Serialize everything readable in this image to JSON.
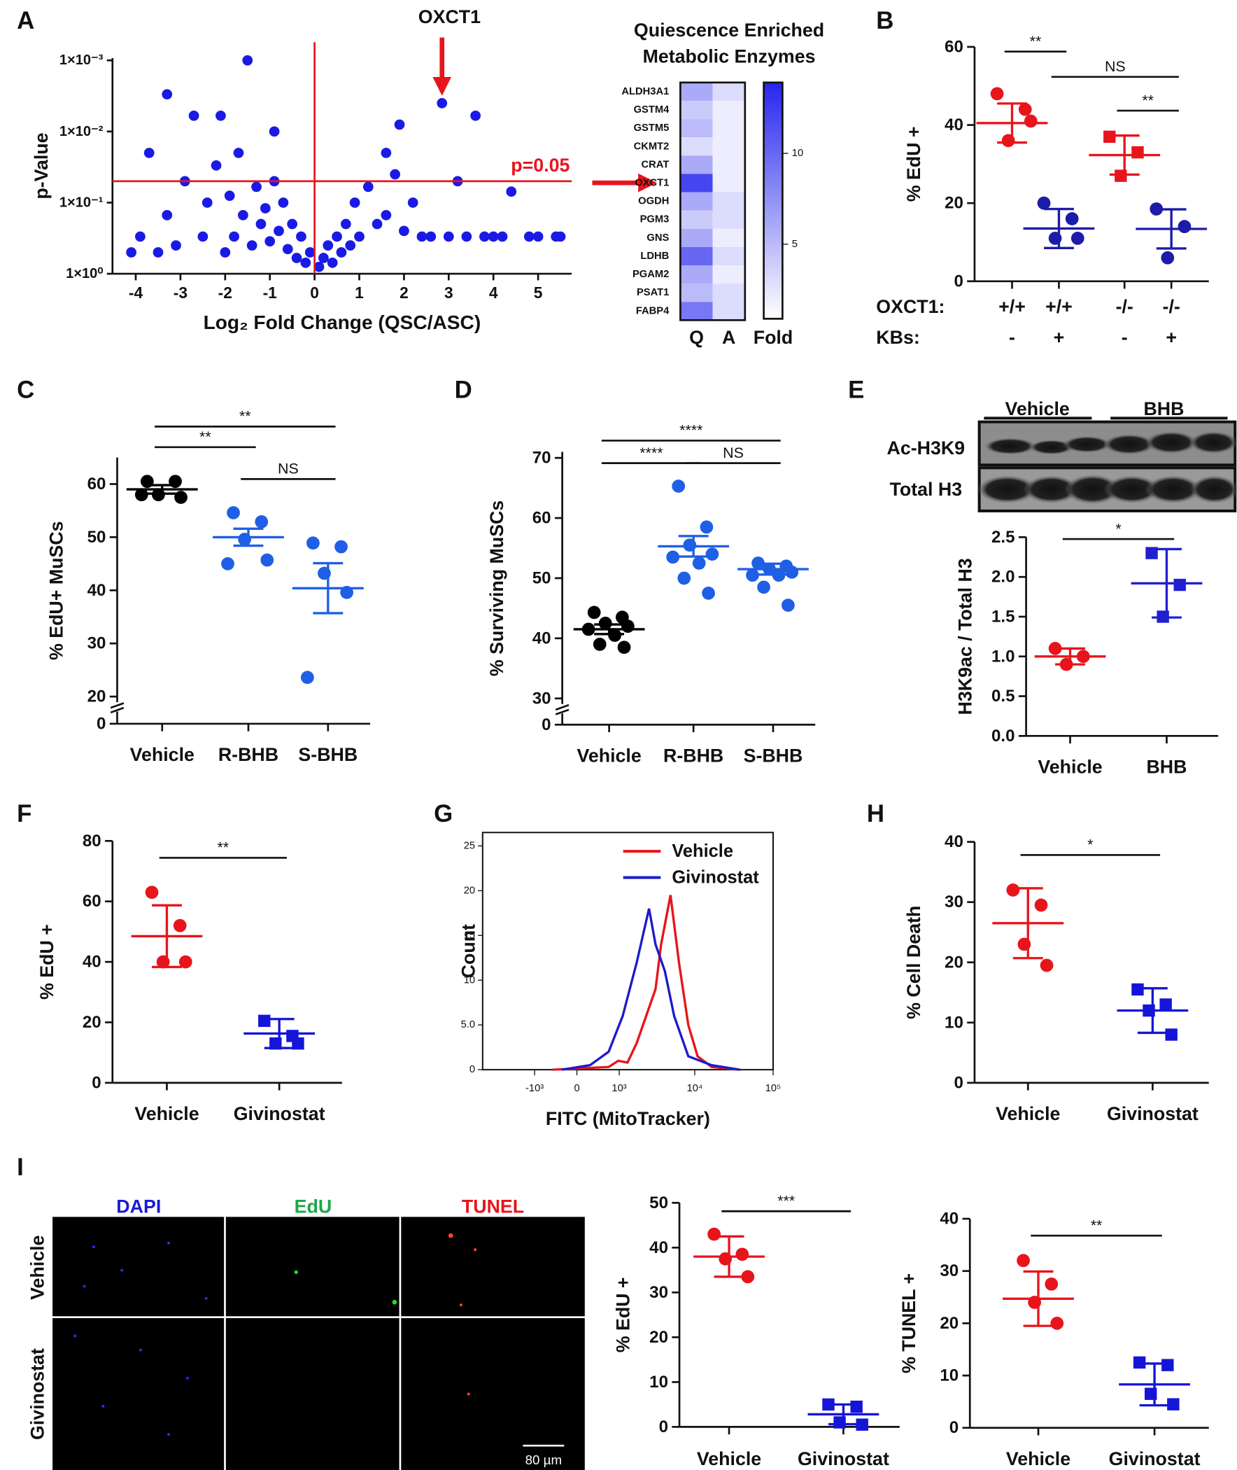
{
  "panel_labels": [
    "A",
    "B",
    "C",
    "D",
    "E",
    "F",
    "G",
    "H",
    "I"
  ],
  "blot": {
    "groups": [
      "Vehicle",
      "BHB"
    ],
    "rows": [
      "Ac-H3K9",
      "Total H3"
    ]
  },
  "micrograph": {
    "columns": [
      "DAPI",
      "EdU",
      "TUNEL"
    ],
    "rows": [
      "Vehicle",
      "Givinostat"
    ],
    "scale_bar": "80 µm"
  },
  "chart_data": [
    {
      "type": "volcano",
      "xlabel": "Log₂ Fold Change (QSC/ASC)",
      "ylabel": "p-Value",
      "xlim": [
        -4.52,
        5.75
      ],
      "xticks": [
        -4,
        -3,
        -2,
        -1,
        0,
        1,
        2,
        3,
        4,
        5
      ],
      "yscale": "log",
      "ylim": [
        1,
        0.00093
      ],
      "yticks": [
        {
          "value": 1,
          "label": "1×10⁰"
        },
        {
          "value": 0.1,
          "label": "1×10⁻¹"
        },
        {
          "value": 0.01,
          "label": "1×10⁻²"
        },
        {
          "value": 0.001,
          "label": "1×10⁻³"
        }
      ],
      "color": "#1a1ae6",
      "x": [
        -4.1,
        -3.9,
        -3.7,
        -3.5,
        -3.3,
        -3.1,
        -2.9,
        -2.7,
        -2.5,
        -2.4,
        -2.2,
        -2.0,
        -1.9,
        -1.8,
        -1.7,
        -1.6,
        -1.5,
        -1.4,
        -1.3,
        -1.2,
        -1.1,
        -1.0,
        -0.9,
        -0.8,
        -0.7,
        -0.6,
        -0.5,
        -0.4,
        -0.3,
        -0.2,
        -0.1,
        0.1,
        0.2,
        0.3,
        0.4,
        0.5,
        0.6,
        0.7,
        0.8,
        0.9,
        1.0,
        1.2,
        1.4,
        1.6,
        1.8,
        2.0,
        2.2,
        2.4,
        2.6,
        2.85,
        3.0,
        3.2,
        3.4,
        3.6,
        3.8,
        4.0,
        4.2,
        4.4,
        4.8,
        5.0,
        5.4,
        5.5,
        -2.1,
        -3.3,
        1.9,
        1.6,
        -0.9
      ],
      "values": [
        0.5,
        0.3,
        0.02,
        0.5,
        0.15,
        0.4,
        0.05,
        0.006,
        0.3,
        0.1,
        0.03,
        0.5,
        0.08,
        0.3,
        0.02,
        0.15,
        0.001,
        0.4,
        0.06,
        0.2,
        0.12,
        0.35,
        0.05,
        0.25,
        0.1,
        0.45,
        0.2,
        0.6,
        0.3,
        0.7,
        0.5,
        0.8,
        0.6,
        0.4,
        0.7,
        0.3,
        0.5,
        0.2,
        0.4,
        0.1,
        0.3,
        0.06,
        0.2,
        0.15,
        0.04,
        0.25,
        0.1,
        0.3,
        0.3,
        0.004,
        0.3,
        0.05,
        0.3,
        0.006,
        0.3,
        0.3,
        0.3,
        0.07,
        0.3,
        0.3,
        0.3,
        0.3,
        0.006,
        0.003,
        0.008,
        0.02,
        0.01
      ],
      "reference_color": "#e8141c",
      "vlines": [
        0
      ],
      "hlines": [
        {
          "value": 0.05,
          "label": "p=0.05"
        }
      ],
      "annotation": {
        "text": "OXCT1",
        "x": 2.85,
        "y": 0.004
      }
    },
    {
      "type": "heatmap",
      "title": [
        "Quiescence Enriched",
        "Metabolic Enzymes"
      ],
      "rows": [
        "ALDH3A1",
        "GSTM4",
        "GSTM5",
        "CKMT2",
        "CRAT",
        "OXCT1",
        "OGDH",
        "PGM3",
        "GNS",
        "LDHB",
        "PGAM2",
        "PSAT1",
        "FABP4"
      ],
      "columns": [
        "Q",
        "A"
      ],
      "values": [
        [
          6,
          3
        ],
        [
          4,
          2
        ],
        [
          5,
          2
        ],
        [
          3,
          2
        ],
        [
          6,
          2
        ],
        [
          12,
          2
        ],
        [
          6,
          3
        ],
        [
          4,
          3
        ],
        [
          6,
          2
        ],
        [
          10,
          3
        ],
        [
          6,
          2
        ],
        [
          5,
          3
        ],
        [
          9,
          3
        ]
      ],
      "colorbar_label": "Fold",
      "zlim": [
        0.9,
        13.9
      ],
      "zticks": [
        5,
        10
      ],
      "colors": [
        "#ffffff",
        "#2626ee"
      ]
    },
    {
      "type": "dot",
      "ylabel": "% EdU +",
      "ylim": [
        0,
        60
      ],
      "yticks": [
        0,
        20,
        40,
        60
      ],
      "groups": [
        {
          "color": "#e8141c",
          "marker": "circle",
          "points": [
            48,
            44,
            36,
            41
          ],
          "mean": 40.5,
          "error": 5
        },
        {
          "color": "#1c1ca8",
          "marker": "circle",
          "points": [
            20,
            16,
            11,
            11
          ],
          "mean": 13.5,
          "error": 5
        },
        {
          "color": "#e8141c",
          "marker": "square",
          "points": [
            37,
            33,
            27
          ],
          "mean": 32.3,
          "error": 5
        },
        {
          "color": "#1c1ca8",
          "marker": "circle",
          "points": [
            18.5,
            14,
            6
          ],
          "mean": 13.4,
          "error": 5
        }
      ],
      "significance": [
        {
          "from": 0,
          "to": 1,
          "label": "**"
        },
        {
          "from": 1,
          "to": 3,
          "label": "NS"
        },
        {
          "from": 2,
          "to": 3,
          "label": "**"
        }
      ],
      "row_labels": [
        {
          "label": "OXCT1:",
          "values": [
            "+/+",
            "+/+",
            "-/-",
            "-/-"
          ]
        },
        {
          "label": "KBs:",
          "values": [
            "-",
            "+",
            "-",
            "+"
          ]
        }
      ]
    },
    {
      "type": "dot",
      "ylabel": "% EdU+ MuSCs",
      "categories": [
        "Vehicle",
        "R-BHB",
        "S-BHB"
      ],
      "ylim": [
        0,
        65
      ],
      "ybreak": [
        0,
        20
      ],
      "yticks": [
        0,
        20,
        30,
        40,
        50,
        60
      ],
      "groups": [
        {
          "color": "#000000",
          "marker": "circle",
          "points": [
            60.5,
            60.5,
            58,
            57.5,
            58
          ],
          "mean": 59,
          "error": 0.8
        },
        {
          "color": "#1f5fe6",
          "marker": "circle",
          "points": [
            54.6,
            52.9,
            49.6,
            45.7,
            45.0
          ],
          "mean": 50,
          "error": 1.6
        },
        {
          "color": "#1f5fe6",
          "marker": "circle",
          "points": [
            48.9,
            48.2,
            43.2,
            39.6,
            23.6
          ],
          "mean": 40.4,
          "error": 4.7
        }
      ],
      "significance": [
        {
          "from": 0,
          "to": 2,
          "label": "**"
        },
        {
          "from": 0,
          "to": 1,
          "label": "**"
        },
        {
          "from": 1,
          "to": 2,
          "label": "NS"
        }
      ]
    },
    {
      "type": "dot",
      "ylabel": "% Surviving MuSCs",
      "categories": [
        "Vehicle",
        "R-BHB",
        "S-BHB"
      ],
      "ylim": [
        0,
        71
      ],
      "ybreak": [
        0,
        30
      ],
      "yticks": [
        0,
        30,
        40,
        50,
        60,
        70
      ],
      "groups": [
        {
          "color": "#000000",
          "marker": "circle",
          "points": [
            44.3,
            43.5,
            42.5,
            42,
            41.5,
            40.5,
            39,
            38.5
          ],
          "mean": 41.5,
          "error": 0.8
        },
        {
          "color": "#1f5fe6",
          "marker": "circle",
          "points": [
            65.3,
            58.5,
            55.5,
            54,
            53.5,
            52.5,
            50,
            47.5
          ],
          "mean": 55.3,
          "error": 1.7
        },
        {
          "color": "#1f5fe6",
          "marker": "circle",
          "points": [
            52.5,
            52,
            51.5,
            51,
            50.5,
            50.5,
            48.5,
            45.5
          ],
          "mean": 51.5,
          "error": 0.9
        }
      ],
      "significance": [
        {
          "from": 0,
          "to": 2,
          "label": "****"
        },
        {
          "from": 0,
          "to": 1,
          "label": "****"
        },
        {
          "from": 1,
          "to": 2,
          "label": "NS"
        }
      ]
    },
    {
      "type": "dot",
      "ylabel": "H3K9ac / Total H3",
      "categories": [
        "Vehicle",
        "BHB"
      ],
      "ylim": [
        0,
        2.5
      ],
      "yticks": [
        {
          "value": 0,
          "label": "0.0"
        },
        0.5,
        {
          "value": 1,
          "label": "1.0"
        },
        1.5,
        {
          "value": 2,
          "label": "2.0"
        },
        2.5
      ],
      "groups": [
        {
          "color": "#e8141c",
          "marker": "circle",
          "points": [
            1.1,
            1.0,
            0.9
          ],
          "mean": 1.0,
          "error": 0.1
        },
        {
          "color": "#2020d0",
          "marker": "square",
          "points": [
            2.3,
            1.9,
            1.5
          ],
          "mean": 1.92,
          "error": 0.43
        }
      ],
      "significance": [
        {
          "from": 0,
          "to": 1,
          "label": "*"
        }
      ]
    },
    {
      "type": "dot",
      "ylabel": "% EdU +",
      "categories": [
        "Vehicle",
        "Givinostat"
      ],
      "ylim": [
        0,
        80
      ],
      "yticks": [
        0,
        20,
        40,
        60,
        80
      ],
      "groups": [
        {
          "color": "#e8141c",
          "marker": "circle",
          "points": [
            63,
            52,
            40,
            40
          ],
          "mean": 48.5,
          "error": 10.2
        },
        {
          "color": "#1515d8",
          "marker": "square",
          "points": [
            20.5,
            15.5,
            13,
            13
          ],
          "mean": 16.3,
          "error": 4.8
        }
      ],
      "significance": [
        {
          "from": 0,
          "to": 1,
          "label": "**"
        }
      ]
    },
    {
      "type": "line",
      "xlabel": "FITC (MitoTracker)",
      "ylabel": "Count",
      "xscale": "biexponential",
      "xlim": [
        -5000,
        100000
      ],
      "xticks": [
        {
          "value": -1000,
          "label": "-10³"
        },
        0,
        {
          "value": 1000,
          "label": "10³"
        },
        {
          "value": 10000,
          "label": "10⁴"
        },
        {
          "value": 100000,
          "label": "10⁵"
        }
      ],
      "ylim": [
        0,
        26.5
      ],
      "yticks": [
        0,
        {
          "value": 5,
          "label": "5.0"
        },
        10,
        15,
        20,
        25
      ],
      "legend": "upper right",
      "series": [
        {
          "name": "Vehicle",
          "color": "#e8141c",
          "x": [
            -489,
            677,
            970,
            1320,
            1770,
            3131,
            3704,
            4895,
            6281,
            8272,
            10893,
            16443,
            37548
          ],
          "values": [
            0,
            0.3,
            1,
            0.8,
            3,
            9,
            14,
            19.5,
            12,
            5,
            1.5,
            0.3,
            0
          ]
        },
        {
          "name": "Givinostat",
          "color": "#1c1cc8",
          "x": [
            -286,
            248,
            677,
            1128,
            1770,
            2577,
            3131,
            4145,
            5462,
            8272,
            16443,
            37548
          ],
          "values": [
            0,
            0.5,
            2,
            6,
            12,
            18,
            14,
            11,
            6,
            1.5,
            0.5,
            0
          ]
        }
      ]
    },
    {
      "type": "dot",
      "ylabel": "% Cell Death",
      "categories": [
        "Vehicle",
        "Givinostat"
      ],
      "ylim": [
        0,
        40
      ],
      "yticks": [
        0,
        10,
        20,
        30,
        40
      ],
      "groups": [
        {
          "color": "#e8141c",
          "marker": "circle",
          "points": [
            32,
            29.5,
            23,
            19.5
          ],
          "mean": 26.5,
          "error": 5.8
        },
        {
          "color": "#1515d8",
          "marker": "square",
          "points": [
            15.5,
            13,
            12,
            8
          ],
          "mean": 12,
          "error": 3.7
        }
      ],
      "significance": [
        {
          "from": 0,
          "to": 1,
          "label": "*"
        }
      ]
    },
    {
      "type": "dot",
      "ylabel": "% EdU +",
      "categories": [
        "Vehicle",
        "Givinostat"
      ],
      "ylim": [
        0,
        50
      ],
      "yticks": [
        0,
        10,
        20,
        30,
        40,
        50
      ],
      "groups": [
        {
          "color": "#e8141c",
          "marker": "circle",
          "points": [
            43,
            38.5,
            37.5,
            33.5
          ],
          "mean": 38,
          "error": 4.5
        },
        {
          "color": "#1515d8",
          "marker": "square",
          "points": [
            5,
            4.5,
            1,
            0.5
          ],
          "mean": 2.8,
          "error": 2.2
        }
      ],
      "significance": [
        {
          "from": 0,
          "to": 1,
          "label": "***"
        }
      ]
    },
    {
      "type": "dot",
      "ylabel": "% TUNEL +",
      "categories": [
        "Vehicle",
        "Givinostat"
      ],
      "ylim": [
        0,
        40
      ],
      "yticks": [
        0,
        10,
        20,
        30,
        40
      ],
      "groups": [
        {
          "color": "#e8141c",
          "marker": "circle",
          "points": [
            32,
            27.5,
            24,
            20
          ],
          "mean": 24.7,
          "error": 5.2
        },
        {
          "color": "#1515d8",
          "marker": "square",
          "points": [
            12.5,
            12,
            6.5,
            4.5
          ],
          "mean": 8.3,
          "error": 4
        }
      ],
      "significance": [
        {
          "from": 0,
          "to": 1,
          "label": "**"
        }
      ]
    }
  ]
}
